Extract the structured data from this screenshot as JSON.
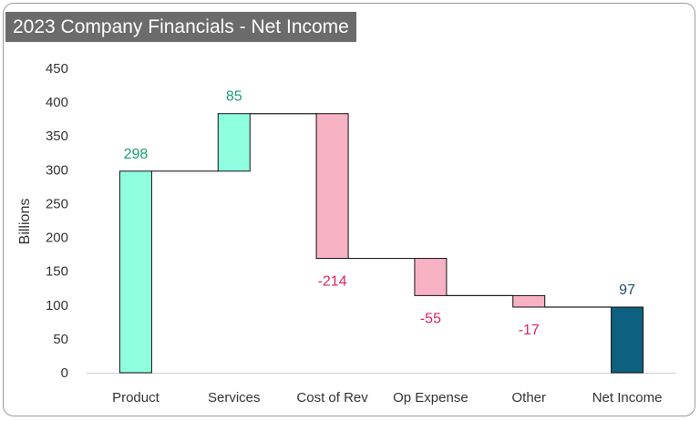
{
  "chart_data": {
    "type": "bar",
    "subtype": "waterfall",
    "title": "2023 Company Financials - Net Income",
    "ylabel": "Billions",
    "xlabel": "",
    "ylim": [
      0,
      450
    ],
    "yticks": [
      0,
      50,
      100,
      150,
      200,
      250,
      300,
      350,
      400,
      450
    ],
    "grid": false,
    "legend": "none",
    "categories": [
      "Product",
      "Services",
      "Cost of Rev",
      "Op Expense",
      "Other",
      "Net Income"
    ],
    "values": [
      298,
      85,
      -214,
      -55,
      -17,
      97
    ],
    "value_labels": [
      "298",
      "85",
      "-214",
      "-55",
      "-17",
      "97"
    ],
    "kinds": [
      "increase",
      "increase",
      "decrease",
      "decrease",
      "decrease",
      "total"
    ],
    "colors": {
      "increase": "#8fffe0",
      "decrease": "#f7b2c4",
      "total": "#0e6080",
      "increase_label": "#1a9e6e",
      "decrease_label": "#e0245e",
      "total_label": "#1b4f66",
      "connector": "#222222"
    }
  }
}
